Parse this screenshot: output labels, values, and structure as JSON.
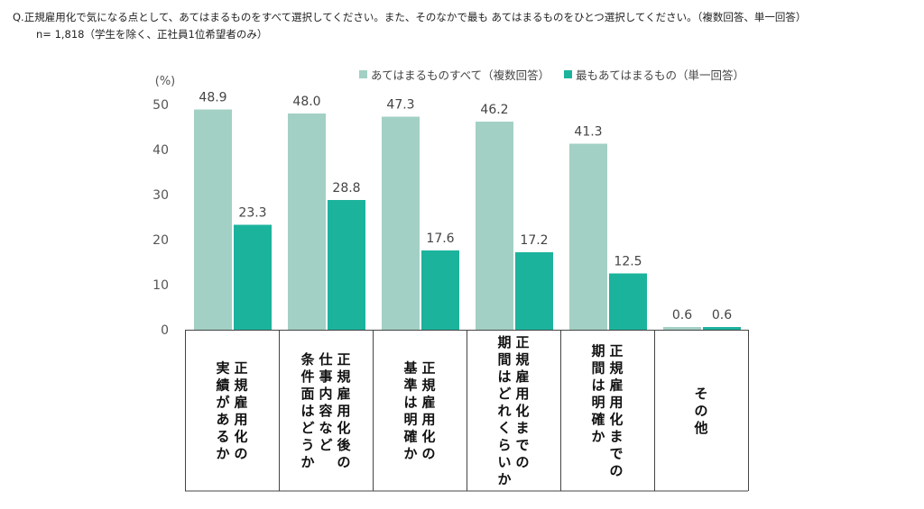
{
  "question": "Q.正規雇用化で気になる点として、あてはまるものをすべて選択してください。また、そのなかで最も あてはまるものをひとつ選択してください。（複数回答、単一回答）",
  "sample": "n= 1,818（学生を除く、正社員1位希望者のみ）",
  "chart_data": {
    "type": "bar",
    "unit": "(%)",
    "ylim": [
      0,
      50
    ],
    "yticks": [
      0,
      10,
      20,
      30,
      40,
      50
    ],
    "categories": [
      [
        "正規雇用化の",
        "実績があるか"
      ],
      [
        "正規雇用化後の",
        "仕事内容など",
        "条件面はどうか"
      ],
      [
        "正規雇用化の",
        "基準は明確か"
      ],
      [
        "正規雇用化までの",
        "期間はどれくらいか"
      ],
      [
        "正規雇用化までの",
        "期間は明確か"
      ],
      [
        "その他"
      ]
    ],
    "series": [
      {
        "name": "あてはまるものすべて（複数回答）",
        "color": "#a3d0c4",
        "values": [
          48.9,
          48.0,
          47.3,
          46.2,
          41.3,
          0.6
        ]
      },
      {
        "name": "最もあてはまるもの（単一回答）",
        "color": "#1cb39d",
        "values": [
          23.3,
          28.8,
          17.6,
          17.2,
          12.5,
          0.6
        ]
      }
    ],
    "legend_position": "top-right",
    "grid": false
  }
}
